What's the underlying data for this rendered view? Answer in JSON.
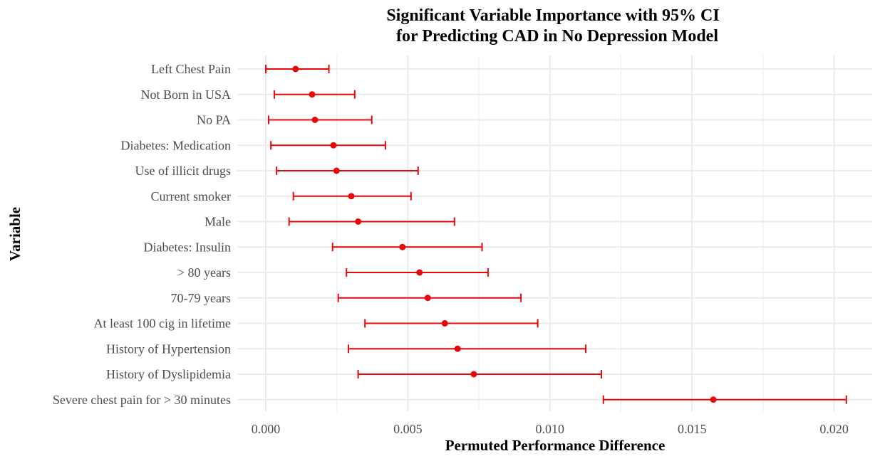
{
  "chart_data": {
    "type": "errorbar",
    "title_line1": "Significant Variable Importance with 95% CI",
    "title_line2": "for Predicting CAD in No Depression Model",
    "xlabel": "Permuted Performance Difference",
    "ylabel": "Variable",
    "xlim": [
      -0.0009,
      0.0214
    ],
    "xticks": [
      "0.000",
      "0.005",
      "0.010",
      "0.015",
      "0.020"
    ],
    "xtick_values": [
      0.0,
      0.005,
      0.01,
      0.015,
      0.02
    ],
    "grid": true,
    "point_color": "#e8080a",
    "categories": [
      "Left Chest Pain",
      "Not Born in USA",
      "No PA",
      "Diabetes: Medication",
      "Use of illicit drugs",
      "Current smoker",
      "Male",
      "Diabetes: Insulin",
      "> 80 years",
      "70-79 years",
      "At least 100 cig in lifetime",
      "History of Hypertension",
      "History of Dyslipidemia",
      "Severe chest pain for > 30 minutes"
    ],
    "estimate": [
      0.00105,
      0.00163,
      0.00173,
      0.00238,
      0.00249,
      0.00301,
      0.00325,
      0.00481,
      0.00541,
      0.0057,
      0.0063,
      0.00675,
      0.00732,
      0.01575
    ],
    "lower": [
      0.0,
      0.0003,
      0.0001,
      0.00018,
      0.00038,
      0.00097,
      0.00082,
      0.00235,
      0.00284,
      0.00255,
      0.00349,
      0.00291,
      0.00325,
      0.01188
    ],
    "upper": [
      0.00222,
      0.00313,
      0.00373,
      0.00421,
      0.00536,
      0.00511,
      0.00664,
      0.00761,
      0.00782,
      0.00898,
      0.00957,
      0.01126,
      0.01181,
      0.02043
    ]
  }
}
